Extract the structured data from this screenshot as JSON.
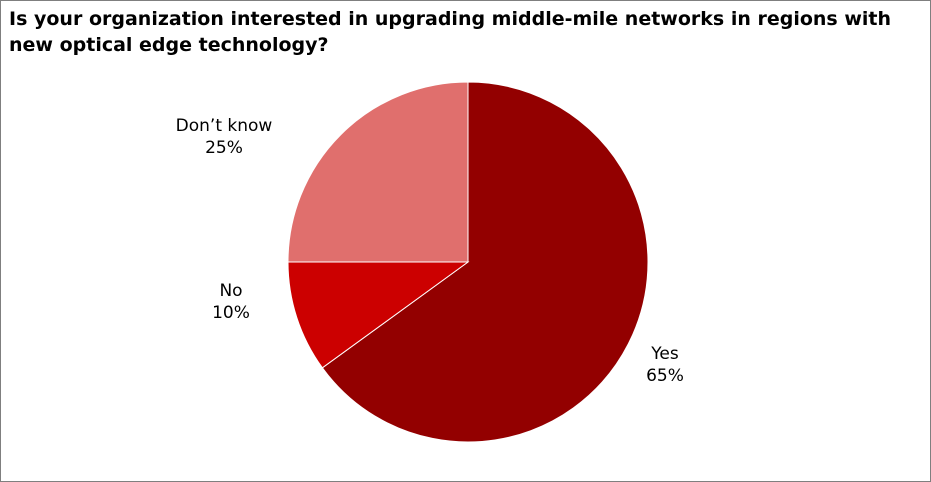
{
  "chart_data": {
    "type": "pie",
    "title": "Is your organization interested in upgrading middle-mile networks in regions with new optical edge technology?",
    "categories": [
      "Yes",
      "No",
      "Don’t know"
    ],
    "values": [
      65,
      10,
      25
    ],
    "value_labels": [
      "65%",
      "10%",
      "25%"
    ],
    "colors": [
      "#930000",
      "#cc0000",
      "#e06f6d"
    ],
    "legend": "none",
    "start_angle_deg": 0,
    "direction": "clockwise"
  }
}
